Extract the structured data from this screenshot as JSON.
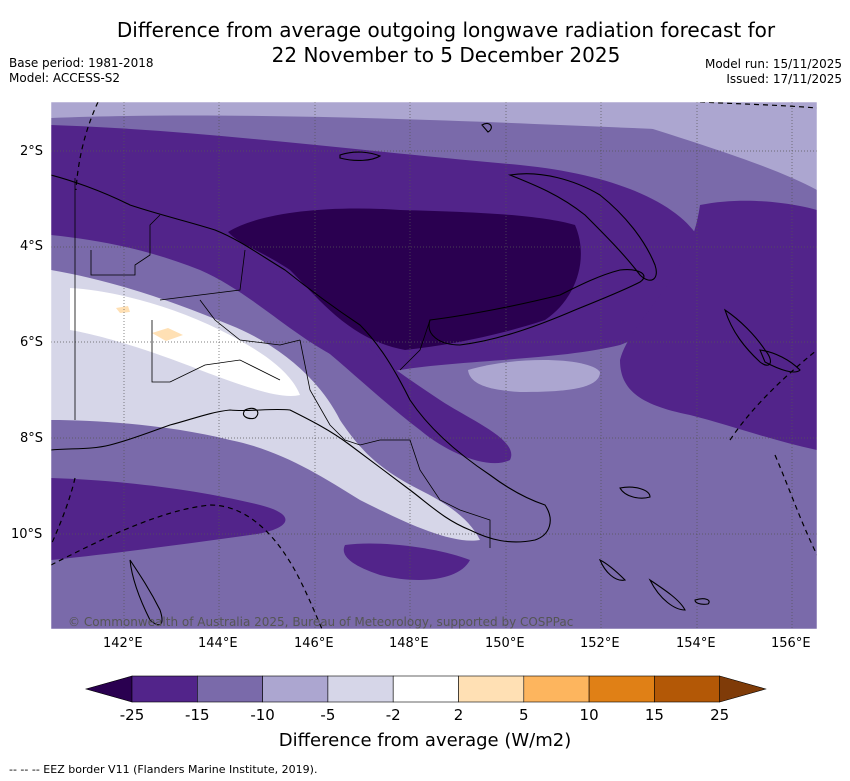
{
  "title_line1": "Difference from average outgoing longwave radiation forecast for",
  "title_line2": "22 November to 5 December 2025",
  "base_period": "Base period: 1981-2018",
  "model": "Model: ACCESS-S2",
  "model_run": "Model run: 15/11/2025",
  "issued": "Issued: 17/11/2025",
  "copyright": "© Commonwealth of Australia 2025, Bureau of Meteorology, supported by COSPPac",
  "lat_labels": [
    "2°S",
    "4°S",
    "6°S",
    "8°S",
    "10°S"
  ],
  "lon_labels": [
    "142°E",
    "144°E",
    "146°E",
    "148°E",
    "150°E",
    "152°E",
    "154°E",
    "156°E"
  ],
  "colorbar": {
    "title": "Difference from average (W/m2)",
    "ticks": [
      "-25",
      "-15",
      "-10",
      "-5",
      "-2",
      "2",
      "5",
      "10",
      "15",
      "25"
    ],
    "colors": [
      "#2a0050",
      "#52248a",
      "#7a6aaa",
      "#aca6d0",
      "#d6d6e8",
      "#ffffff",
      "#ffe0b4",
      "#fdb55e",
      "#e08016",
      "#b35806",
      "#7f3b08"
    ]
  },
  "footer": "-- -- -- EEZ border V11 (Flanders Marine Institute, 2019)."
}
